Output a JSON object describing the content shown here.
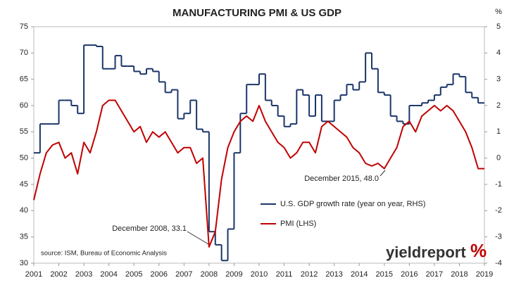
{
  "chart_data": {
    "type": "line",
    "title": "MANUFACTURING PMI & US GDP",
    "y2_unit_label": "%",
    "source": "source: ISM, Bureau of Economic Analysis",
    "logo": {
      "text": "yieldreport",
      "symbol": "%"
    },
    "annotations": [
      "December 2008, 33.1",
      "December 2015, 48.0"
    ],
    "xlim": [
      2001,
      2019
    ],
    "xticks": [
      2001,
      2002,
      2003,
      2004,
      2005,
      2006,
      2007,
      2008,
      2009,
      2010,
      2011,
      2012,
      2013,
      2014,
      2015,
      2016,
      2017,
      2018,
      2019
    ],
    "ylim": [
      30,
      75
    ],
    "yticks": [
      30,
      35,
      40,
      45,
      50,
      55,
      60,
      65,
      70,
      75
    ],
    "y2lim": [
      -4,
      5
    ],
    "y2ticks": [
      -4,
      -3,
      -2,
      -1,
      0,
      1,
      2,
      3,
      4,
      5
    ],
    "legend": "center-right",
    "series": [
      {
        "name": "U.S. GDP growth rate (year on year, RHS)",
        "color": "#1b3569",
        "axis": "y2",
        "step": true,
        "x": [
          2001,
          2001.25,
          2001.5,
          2001.75,
          2002,
          2002.25,
          2002.5,
          2002.75,
          2003,
          2003.25,
          2003.5,
          2003.75,
          2004,
          2004.25,
          2004.5,
          2004.75,
          2005,
          2005.25,
          2005.5,
          2005.75,
          2006,
          2006.25,
          2006.5,
          2006.75,
          2007,
          2007.25,
          2007.5,
          2007.75,
          2008,
          2008.25,
          2008.5,
          2008.75,
          2009,
          2009.25,
          2009.5,
          2009.75,
          2010,
          2010.25,
          2010.5,
          2010.75,
          2011,
          2011.25,
          2011.5,
          2011.75,
          2012,
          2012.25,
          2012.5,
          2012.75,
          2013,
          2013.25,
          2013.5,
          2013.75,
          2014,
          2014.25,
          2014.5,
          2014.75,
          2015,
          2015.25,
          2015.5,
          2015.75,
          2016,
          2016.25,
          2016.5,
          2016.75,
          2017,
          2017.25,
          2017.5,
          2017.75,
          2018,
          2018.25,
          2018.5,
          2018.75
        ],
        "values": [
          0.2,
          1.3,
          1.3,
          1.3,
          2.2,
          2.2,
          2.0,
          1.7,
          4.3,
          4.3,
          4.25,
          3.4,
          3.4,
          3.9,
          3.5,
          3.5,
          3.3,
          3.2,
          3.4,
          3.3,
          2.9,
          2.5,
          2.6,
          1.5,
          1.7,
          2.2,
          1.1,
          1.0,
          -2.8,
          -3.3,
          -3.9,
          -2.7,
          0.2,
          1.7,
          2.8,
          2.8,
          3.2,
          2.2,
          2.0,
          1.6,
          1.2,
          1.3,
          2.6,
          2.4,
          1.6,
          2.4,
          1.4,
          1.4,
          2.2,
          2.4,
          2.8,
          2.6,
          2.9,
          4.0,
          3.4,
          2.5,
          2.4,
          1.6,
          1.4,
          1.3,
          2.0,
          2.0,
          2.1,
          2.2,
          2.4,
          2.7,
          2.8,
          3.2,
          3.1,
          2.5,
          2.3,
          2.1
        ]
      },
      {
        "name": "PMI (LHS)",
        "color": "#c00000",
        "axis": "y",
        "x": [
          2001,
          2001.25,
          2001.5,
          2001.75,
          2002,
          2002.25,
          2002.5,
          2002.75,
          2003,
          2003.25,
          2003.5,
          2003.75,
          2004,
          2004.25,
          2004.5,
          2004.75,
          2005,
          2005.25,
          2005.5,
          2005.75,
          2006,
          2006.25,
          2006.5,
          2006.75,
          2007,
          2007.25,
          2007.5,
          2007.75,
          2008,
          2008.25,
          2008.5,
          2008.75,
          2009,
          2009.25,
          2009.5,
          2009.75,
          2010,
          2010.25,
          2010.5,
          2010.75,
          2011,
          2011.25,
          2011.5,
          2011.75,
          2012,
          2012.25,
          2012.5,
          2012.75,
          2013,
          2013.25,
          2013.5,
          2013.75,
          2014,
          2014.25,
          2014.5,
          2014.75,
          2015,
          2015.25,
          2015.5,
          2015.75,
          2016,
          2016.25,
          2016.5,
          2016.75,
          2017,
          2017.25,
          2017.5,
          2017.75,
          2018,
          2018.25,
          2018.5,
          2018.75,
          2019
        ],
        "values": [
          42,
          47,
          51,
          52.5,
          53,
          50,
          51,
          47,
          53,
          51,
          55,
          60,
          61,
          61,
          59,
          57,
          55,
          56,
          53,
          55,
          54,
          55,
          53,
          51,
          52,
          52,
          49,
          50,
          33.1,
          36,
          46,
          52,
          55,
          57,
          58,
          57,
          60,
          57,
          55,
          53,
          52,
          50,
          51,
          53,
          53,
          51,
          56,
          57,
          56,
          55,
          54,
          52,
          51,
          49,
          48.5,
          49,
          48,
          50,
          52,
          56,
          57,
          55,
          58,
          59,
          60,
          59,
          60,
          59,
          57,
          55,
          52,
          48,
          48
        ]
      }
    ]
  }
}
